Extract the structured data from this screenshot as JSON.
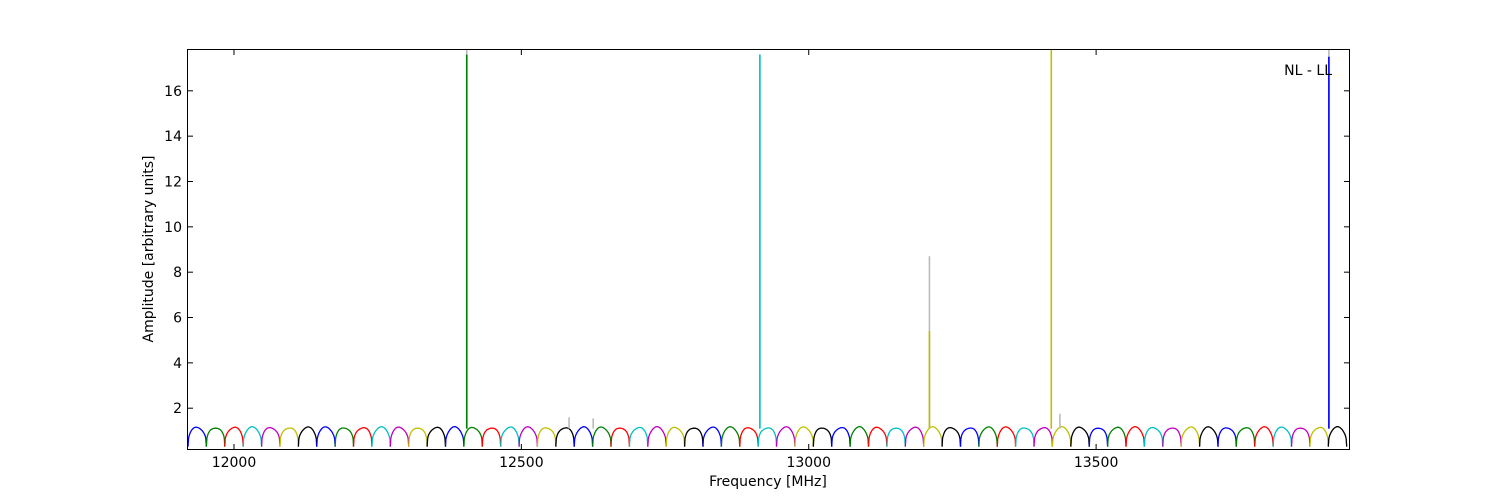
{
  "chart_data": {
    "type": "line",
    "title": "",
    "xlabel": "Frequency [MHz]",
    "ylabel": "Amplitude [arbitrary units]",
    "annotation": "NL - LL",
    "annotation_position": "top-right",
    "xlim": [
      11920,
      13940
    ],
    "ylim": [
      0.2,
      17.8
    ],
    "xticks": [
      12000,
      12500,
      13000,
      13500
    ],
    "yticks": [
      2,
      4,
      6,
      8,
      10,
      12,
      14,
      16
    ],
    "grid": false,
    "legend": "none",
    "channel": {
      "start": 11920,
      "width": 32,
      "count": 63,
      "base_amplitude": 1.15,
      "dip_amplitude": 0.3,
      "color_cycle": [
        "#0000ff",
        "#008000",
        "#ff0000",
        "#00bfbf",
        "#bf00bf",
        "#bfbf00",
        "#000000"
      ]
    },
    "gray_trace_color": "#bbbbbb",
    "spikes": [
      {
        "x": 12405,
        "y": 17.6,
        "color": "#008000"
      },
      {
        "x": 12405,
        "y": 17.8,
        "color": "#bbbbbb"
      },
      {
        "x": 12583,
        "y": 1.6,
        "color": "#bbbbbb"
      },
      {
        "x": 12625,
        "y": 1.55,
        "color": "#bbbbbb"
      },
      {
        "x": 12915,
        "y": 17.6,
        "color": "#00bfbf"
      },
      {
        "x": 13210,
        "y": 8.7,
        "color": "#bbbbbb"
      },
      {
        "x": 13210,
        "y": 5.4,
        "color": "#bfbf00"
      },
      {
        "x": 13422,
        "y": 17.8,
        "color": "#bfbf00"
      },
      {
        "x": 13437,
        "y": 1.75,
        "color": "#bbbbbb"
      },
      {
        "x": 13905,
        "y": 17.5,
        "color": "#0000ff"
      },
      {
        "x": 13905,
        "y": 17.8,
        "color": "#bbbbbb"
      }
    ]
  }
}
